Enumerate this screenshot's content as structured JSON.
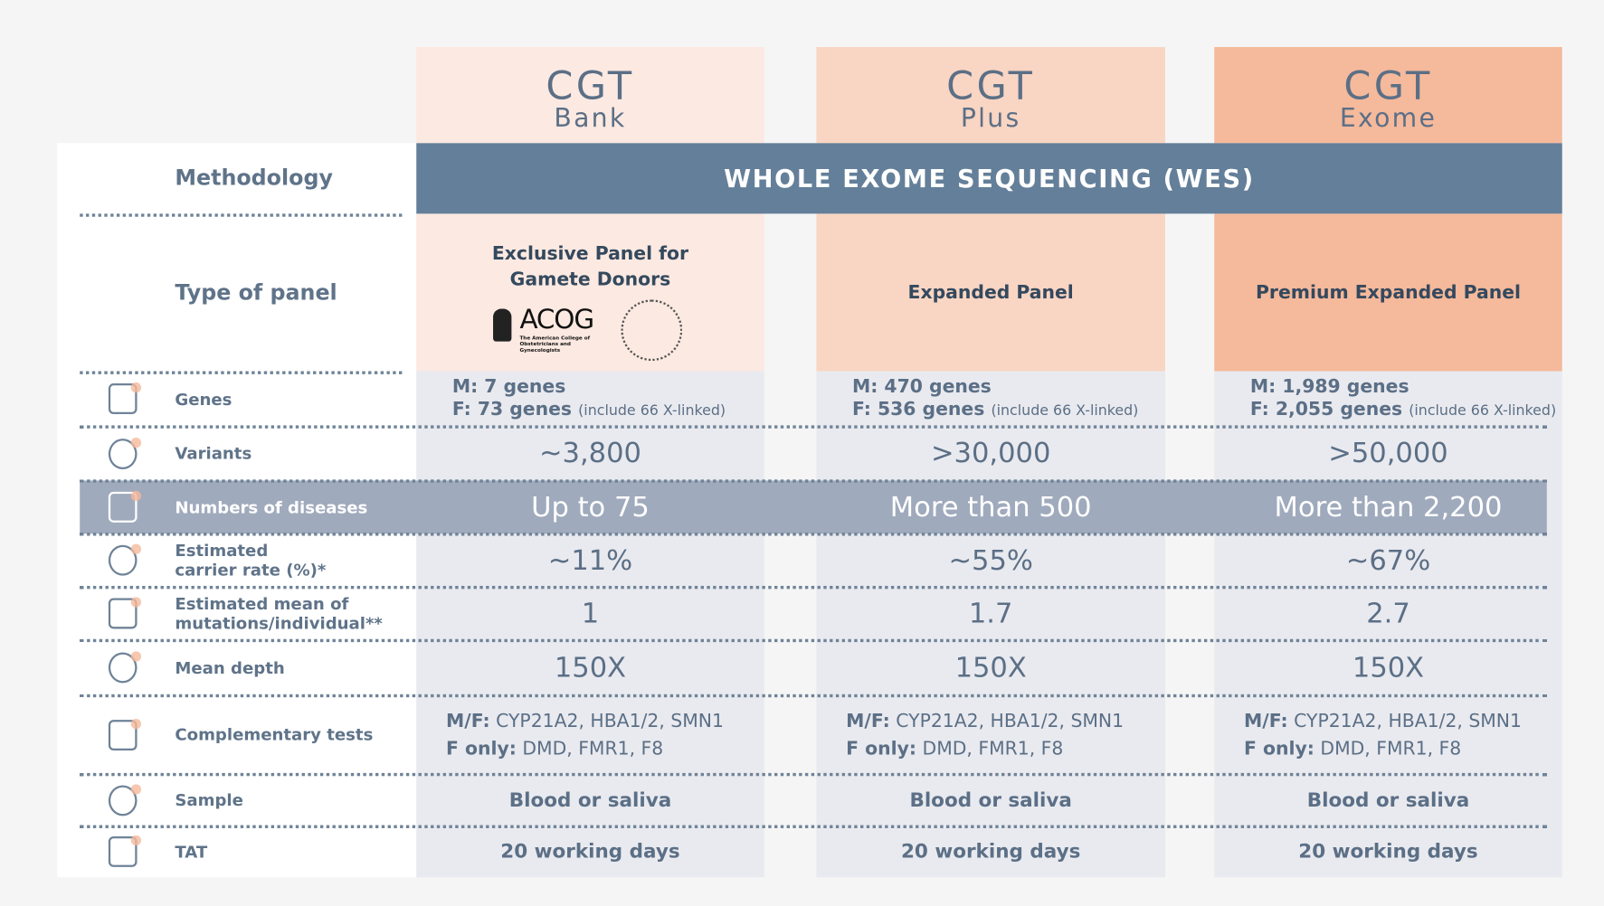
{
  "columns": [
    {
      "name": "CGT",
      "variant": "Bank"
    },
    {
      "name": "CGT",
      "variant": "Plus"
    },
    {
      "name": "CGT",
      "variant": "Exome"
    }
  ],
  "methodology": {
    "label": "Methodology",
    "value": "WHOLE EXOME SEQUENCING (WES)"
  },
  "panel": {
    "label": "Type of panel",
    "values": [
      "Exclusive Panel for Gamete Donors",
      "Expanded Panel",
      "Premium Expanded Panel"
    ],
    "logo": {
      "name": "ACOG",
      "caption": "The American College of Obstetricians and Gynecologists"
    }
  },
  "rows": [
    {
      "label": "Genes",
      "values": [
        {
          "male": "M: 7 genes",
          "female": "F: 73 genes",
          "note": "(include 66 X-linked)"
        },
        {
          "male": "M: 470 genes",
          "female": "F: 536 genes",
          "note": "(include 66 X-linked)"
        },
        {
          "male": "M: 1,989 genes",
          "female": "F: 2,055 genes",
          "note": "(include 66 X-linked)"
        }
      ]
    },
    {
      "label": "Variants",
      "values": [
        "~3,800",
        ">30,000",
        ">50,000"
      ]
    },
    {
      "label": "Numbers of diseases",
      "values": [
        "Up to 75",
        "More than 500",
        "More than 2,200"
      ]
    },
    {
      "label": [
        "Estimated",
        "carrier rate (%)*"
      ],
      "values": [
        "~11%",
        "~55%",
        "~67%"
      ]
    },
    {
      "label": [
        "Estimated mean of",
        "mutations/individual**"
      ],
      "values": [
        "1",
        "1.7",
        "2.7"
      ]
    },
    {
      "label": "Mean depth",
      "values": [
        "150X",
        "150X",
        "150X"
      ]
    },
    {
      "label": "Complementary tests",
      "values": [
        {
          "both_label": "M/F:",
          "both": "CYP21A2, HBA1/2, SMN1",
          "female_label": "F only:",
          "female": "DMD, FMR1, F8"
        },
        {
          "both_label": "M/F:",
          "both": "CYP21A2, HBA1/2, SMN1",
          "female_label": "F only:",
          "female": "DMD, FMR1, F8"
        },
        {
          "both_label": "M/F:",
          "both": "CYP21A2, HBA1/2, SMN1",
          "female_label": "F only:",
          "female": "DMD, FMR1, F8"
        }
      ]
    },
    {
      "label": "Sample",
      "values": [
        "Blood or saliva",
        "Blood or saliva",
        "Blood or saliva"
      ]
    },
    {
      "label": "TAT",
      "values": [
        "20 working days",
        "20 working days",
        "20 working days"
      ]
    }
  ]
}
